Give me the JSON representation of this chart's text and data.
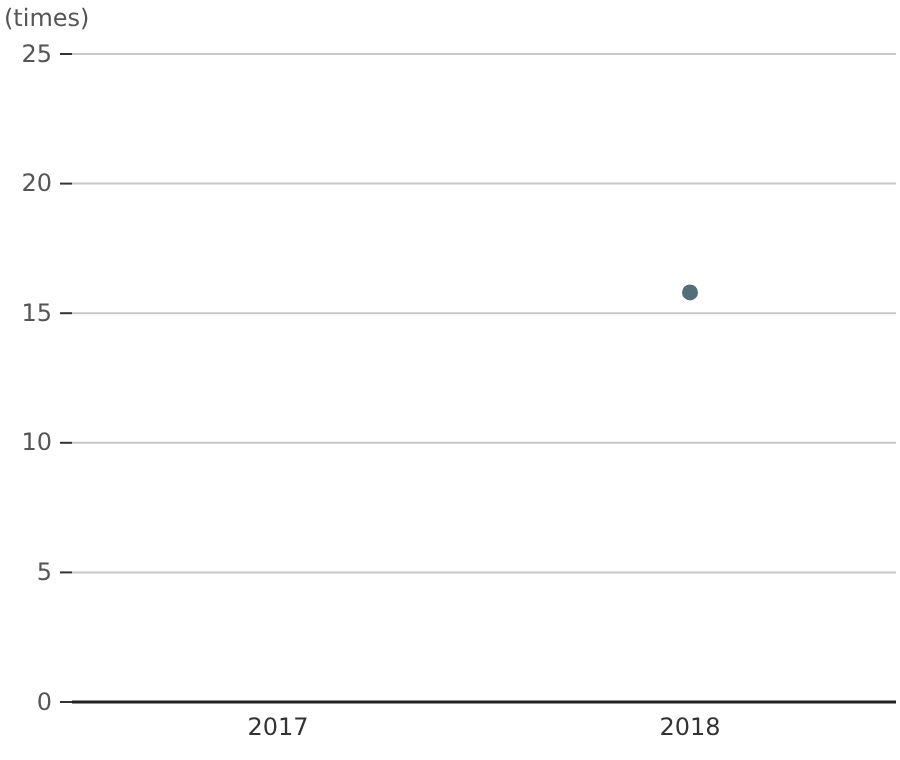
{
  "chart_data": {
    "type": "scatter",
    "ylabel": "(times)",
    "categories": [
      "2017",
      "2018"
    ],
    "series": [
      {
        "color": "#546e7a",
        "values": [
          null,
          15.8
        ]
      }
    ],
    "ylim": [
      0,
      25
    ],
    "yticks": [
      0,
      5,
      10,
      15,
      20,
      25
    ],
    "grid": "y",
    "marker": "circle"
  }
}
